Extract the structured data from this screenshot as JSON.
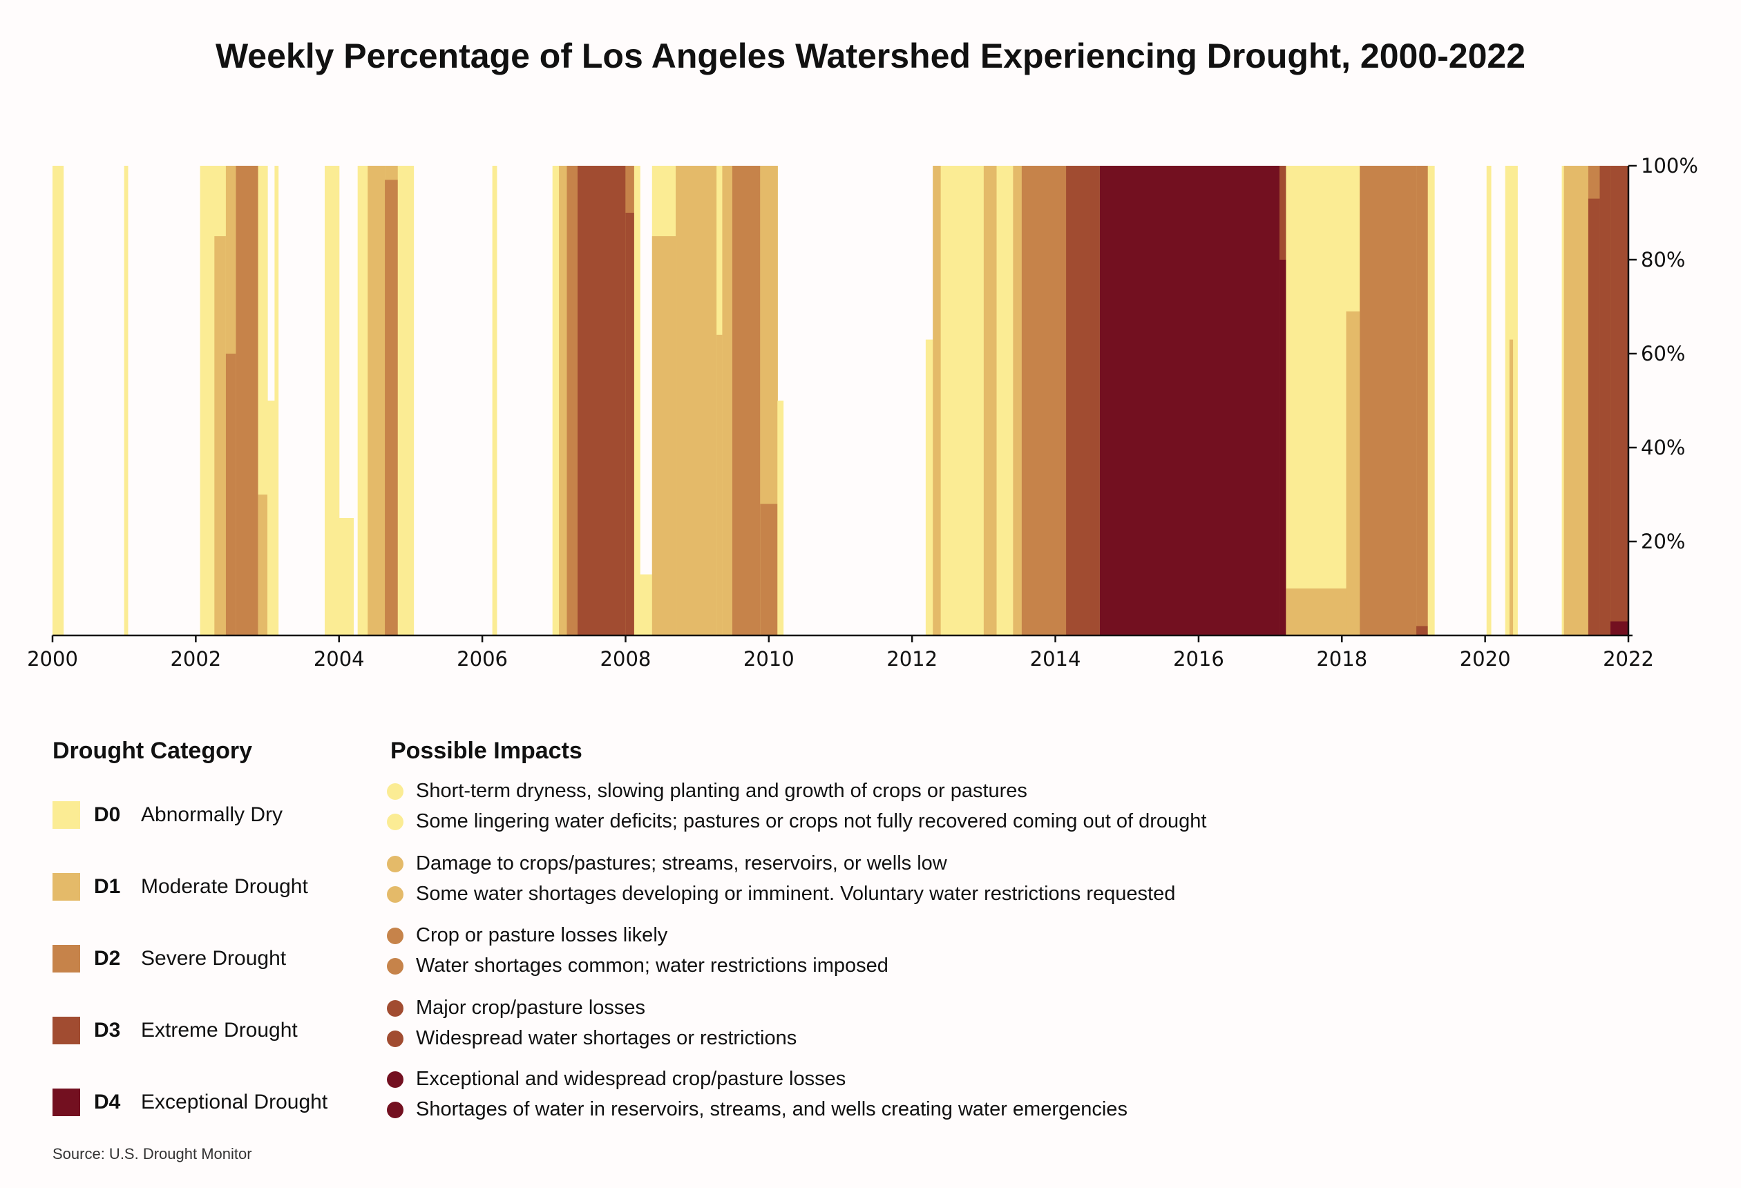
{
  "title": "Weekly Percentage of Los Angeles Watershed Experiencing Drought, 2000-2022",
  "source": "Source: U.S. Drought Monitor",
  "colors": {
    "D0": "#fbec94",
    "D1": "#e4ba69",
    "D2": "#c6834a",
    "D3": "#a14c31",
    "D4": "#731020"
  },
  "chart_data": {
    "type": "area",
    "title": "Weekly Percentage of Los Angeles Watershed Experiencing Drought, 2000-2022",
    "stacked": true,
    "value_meaning": "percent of area in category or worse",
    "x_ticks": [
      "2000",
      "2002",
      "2004",
      "2006",
      "2008",
      "2010",
      "2012",
      "2014",
      "2016",
      "2018",
      "2020",
      "2022"
    ],
    "xlim": [
      2000,
      2022
    ],
    "y_ticks": [
      "20%",
      "40%",
      "60%",
      "80%",
      "100%"
    ],
    "ylim": [
      0,
      100
    ],
    "y_axis_side": "right",
    "grid": false,
    "periods": [
      {
        "start": 2000.0,
        "end": 2000.15,
        "D0": 100,
        "D1": 0,
        "D2": 0,
        "D3": 0,
        "D4": 0
      },
      {
        "start": 2001.0,
        "end": 2001.05,
        "D0": 100,
        "D1": 0,
        "D2": 0,
        "D3": 0,
        "D4": 0
      },
      {
        "start": 2002.06,
        "end": 2002.26,
        "D0": 100,
        "D1": 0,
        "D2": 0,
        "D3": 0,
        "D4": 0
      },
      {
        "start": 2002.26,
        "end": 2002.42,
        "D0": 100,
        "D1": 85,
        "D2": 0,
        "D3": 0,
        "D4": 0
      },
      {
        "start": 2002.42,
        "end": 2002.56,
        "D0": 100,
        "D1": 100,
        "D2": 60,
        "D3": 0,
        "D4": 0
      },
      {
        "start": 2002.56,
        "end": 2002.87,
        "D0": 100,
        "D1": 100,
        "D2": 100,
        "D3": 0,
        "D4": 0
      },
      {
        "start": 2002.87,
        "end": 2003.0,
        "D0": 100,
        "D1": 30,
        "D2": 0,
        "D3": 0,
        "D4": 0
      },
      {
        "start": 2003.0,
        "end": 2003.1,
        "D0": 50,
        "D1": 0,
        "D2": 0,
        "D3": 0,
        "D4": 0
      },
      {
        "start": 2003.1,
        "end": 2003.15,
        "D0": 100,
        "D1": 0,
        "D2": 0,
        "D3": 0,
        "D4": 0
      },
      {
        "start": 2003.8,
        "end": 2004.0,
        "D0": 100,
        "D1": 0,
        "D2": 0,
        "D3": 0,
        "D4": 0
      },
      {
        "start": 2004.0,
        "end": 2004.2,
        "D0": 25,
        "D1": 0,
        "D2": 0,
        "D3": 0,
        "D4": 0
      },
      {
        "start": 2004.26,
        "end": 2004.4,
        "D0": 100,
        "D1": 0,
        "D2": 0,
        "D3": 0,
        "D4": 0
      },
      {
        "start": 2004.4,
        "end": 2004.64,
        "D0": 100,
        "D1": 100,
        "D2": 0,
        "D3": 0,
        "D4": 0
      },
      {
        "start": 2004.64,
        "end": 2004.82,
        "D0": 100,
        "D1": 100,
        "D2": 97,
        "D3": 0,
        "D4": 0
      },
      {
        "start": 2004.82,
        "end": 2005.04,
        "D0": 100,
        "D1": 0,
        "D2": 0,
        "D3": 0,
        "D4": 0
      },
      {
        "start": 2006.14,
        "end": 2006.2,
        "D0": 100,
        "D1": 0,
        "D2": 0,
        "D3": 0,
        "D4": 0
      },
      {
        "start": 2006.98,
        "end": 2007.07,
        "D0": 100,
        "D1": 0,
        "D2": 0,
        "D3": 0,
        "D4": 0
      },
      {
        "start": 2007.07,
        "end": 2007.18,
        "D0": 100,
        "D1": 100,
        "D2": 0,
        "D3": 0,
        "D4": 0
      },
      {
        "start": 2007.18,
        "end": 2007.33,
        "D0": 100,
        "D1": 100,
        "D2": 100,
        "D3": 0,
        "D4": 0
      },
      {
        "start": 2007.33,
        "end": 2008.0,
        "D0": 100,
        "D1": 100,
        "D2": 100,
        "D3": 100,
        "D4": 0
      },
      {
        "start": 2008.0,
        "end": 2008.12,
        "D0": 100,
        "D1": 100,
        "D2": 100,
        "D3": 90,
        "D4": 0
      },
      {
        "start": 2008.12,
        "end": 2008.2,
        "D0": 100,
        "D1": 0,
        "D2": 0,
        "D3": 0,
        "D4": 0
      },
      {
        "start": 2008.2,
        "end": 2008.37,
        "D0": 13,
        "D1": 0,
        "D2": 0,
        "D3": 0,
        "D4": 0
      },
      {
        "start": 2008.37,
        "end": 2008.7,
        "D0": 100,
        "D1": 85,
        "D2": 0,
        "D3": 0,
        "D4": 0
      },
      {
        "start": 2008.7,
        "end": 2009.27,
        "D0": 100,
        "D1": 100,
        "D2": 0,
        "D3": 0,
        "D4": 0
      },
      {
        "start": 2009.27,
        "end": 2009.35,
        "D0": 100,
        "D1": 64,
        "D2": 0,
        "D3": 0,
        "D4": 0
      },
      {
        "start": 2009.35,
        "end": 2009.49,
        "D0": 100,
        "D1": 100,
        "D2": 0,
        "D3": 0,
        "D4": 0
      },
      {
        "start": 2009.49,
        "end": 2009.88,
        "D0": 100,
        "D1": 100,
        "D2": 100,
        "D3": 0,
        "D4": 0
      },
      {
        "start": 2009.88,
        "end": 2010.12,
        "D0": 100,
        "D1": 100,
        "D2": 28,
        "D3": 0,
        "D4": 0
      },
      {
        "start": 2010.12,
        "end": 2010.2,
        "D0": 50,
        "D1": 0,
        "D2": 0,
        "D3": 0,
        "D4": 0
      },
      {
        "start": 2012.19,
        "end": 2012.29,
        "D0": 63,
        "D1": 0,
        "D2": 0,
        "D3": 0,
        "D4": 0
      },
      {
        "start": 2012.29,
        "end": 2012.4,
        "D0": 100,
        "D1": 100,
        "D2": 0,
        "D3": 0,
        "D4": 0
      },
      {
        "start": 2012.4,
        "end": 2013.0,
        "D0": 100,
        "D1": 0,
        "D2": 0,
        "D3": 0,
        "D4": 0
      },
      {
        "start": 2013.0,
        "end": 2013.18,
        "D0": 100,
        "D1": 100,
        "D2": 0,
        "D3": 0,
        "D4": 0
      },
      {
        "start": 2013.18,
        "end": 2013.41,
        "D0": 100,
        "D1": 0,
        "D2": 0,
        "D3": 0,
        "D4": 0
      },
      {
        "start": 2013.41,
        "end": 2013.53,
        "D0": 100,
        "D1": 100,
        "D2": 0,
        "D3": 0,
        "D4": 0
      },
      {
        "start": 2013.53,
        "end": 2014.15,
        "D0": 100,
        "D1": 100,
        "D2": 100,
        "D3": 0,
        "D4": 0
      },
      {
        "start": 2014.15,
        "end": 2014.62,
        "D0": 100,
        "D1": 100,
        "D2": 100,
        "D3": 100,
        "D4": 0
      },
      {
        "start": 2014.62,
        "end": 2017.13,
        "D0": 100,
        "D1": 100,
        "D2": 100,
        "D3": 100,
        "D4": 100
      },
      {
        "start": 2017.13,
        "end": 2017.22,
        "D0": 100,
        "D1": 100,
        "D2": 100,
        "D3": 100,
        "D4": 80
      },
      {
        "start": 2017.22,
        "end": 2018.06,
        "D0": 100,
        "D1": 10,
        "D2": 0,
        "D3": 0,
        "D4": 0
      },
      {
        "start": 2018.06,
        "end": 2018.25,
        "D0": 100,
        "D1": 69,
        "D2": 0,
        "D3": 0,
        "D4": 0
      },
      {
        "start": 2018.25,
        "end": 2019.04,
        "D0": 100,
        "D1": 100,
        "D2": 100,
        "D3": 0,
        "D4": 0
      },
      {
        "start": 2019.04,
        "end": 2019.2,
        "D0": 100,
        "D1": 100,
        "D2": 100,
        "D3": 2,
        "D4": 0
      },
      {
        "start": 2019.2,
        "end": 2019.29,
        "D0": 100,
        "D1": 0,
        "D2": 0,
        "D3": 0,
        "D4": 0
      },
      {
        "start": 2020.02,
        "end": 2020.08,
        "D0": 100,
        "D1": 0,
        "D2": 0,
        "D3": 0,
        "D4": 0
      },
      {
        "start": 2020.28,
        "end": 2020.34,
        "D0": 100,
        "D1": 0,
        "D2": 0,
        "D3": 0,
        "D4": 0
      },
      {
        "start": 2020.34,
        "end": 2020.39,
        "D0": 100,
        "D1": 63,
        "D2": 0,
        "D3": 0,
        "D4": 0
      },
      {
        "start": 2020.39,
        "end": 2020.45,
        "D0": 100,
        "D1": 0,
        "D2": 0,
        "D3": 0,
        "D4": 0
      },
      {
        "start": 2021.07,
        "end": 2021.1,
        "D0": 100,
        "D1": 0,
        "D2": 0,
        "D3": 0,
        "D4": 0
      },
      {
        "start": 2021.1,
        "end": 2021.44,
        "D0": 100,
        "D1": 100,
        "D2": 0,
        "D3": 0,
        "D4": 0
      },
      {
        "start": 2021.44,
        "end": 2021.6,
        "D0": 100,
        "D1": 100,
        "D2": 100,
        "D3": 93,
        "D4": 0
      },
      {
        "start": 2021.6,
        "end": 2021.75,
        "D0": 100,
        "D1": 100,
        "D2": 100,
        "D3": 100,
        "D4": 0
      },
      {
        "start": 2021.75,
        "end": 2022.0,
        "D0": 100,
        "D1": 100,
        "D2": 100,
        "D3": 100,
        "D4": 3
      }
    ]
  },
  "legend": {
    "category_heading": "Drought Category",
    "impacts_heading": "Possible Impacts",
    "categories": [
      {
        "code": "D0",
        "label": "Abnormally Dry",
        "impacts": [
          "Short-term dryness, slowing planting and growth of crops or pastures",
          "Some lingering water deficits; pastures or crops not fully recovered coming out of drought"
        ]
      },
      {
        "code": "D1",
        "label": "Moderate Drought",
        "impacts": [
          "Damage to crops/pastures; streams, reservoirs, or wells low",
          "Some water shortages developing or imminent. Voluntary water restrictions requested"
        ]
      },
      {
        "code": "D2",
        "label": "Severe Drought",
        "impacts": [
          "Crop or pasture losses likely",
          "Water shortages common; water restrictions imposed"
        ]
      },
      {
        "code": "D3",
        "label": "Extreme Drought",
        "impacts": [
          "Major crop/pasture losses",
          "Widespread water shortages or restrictions"
        ]
      },
      {
        "code": "D4",
        "label": "Exceptional Drought",
        "impacts": [
          "Exceptional and widespread crop/pasture losses",
          "Shortages of water in reservoirs, streams, and wells creating water emergencies"
        ]
      }
    ]
  }
}
